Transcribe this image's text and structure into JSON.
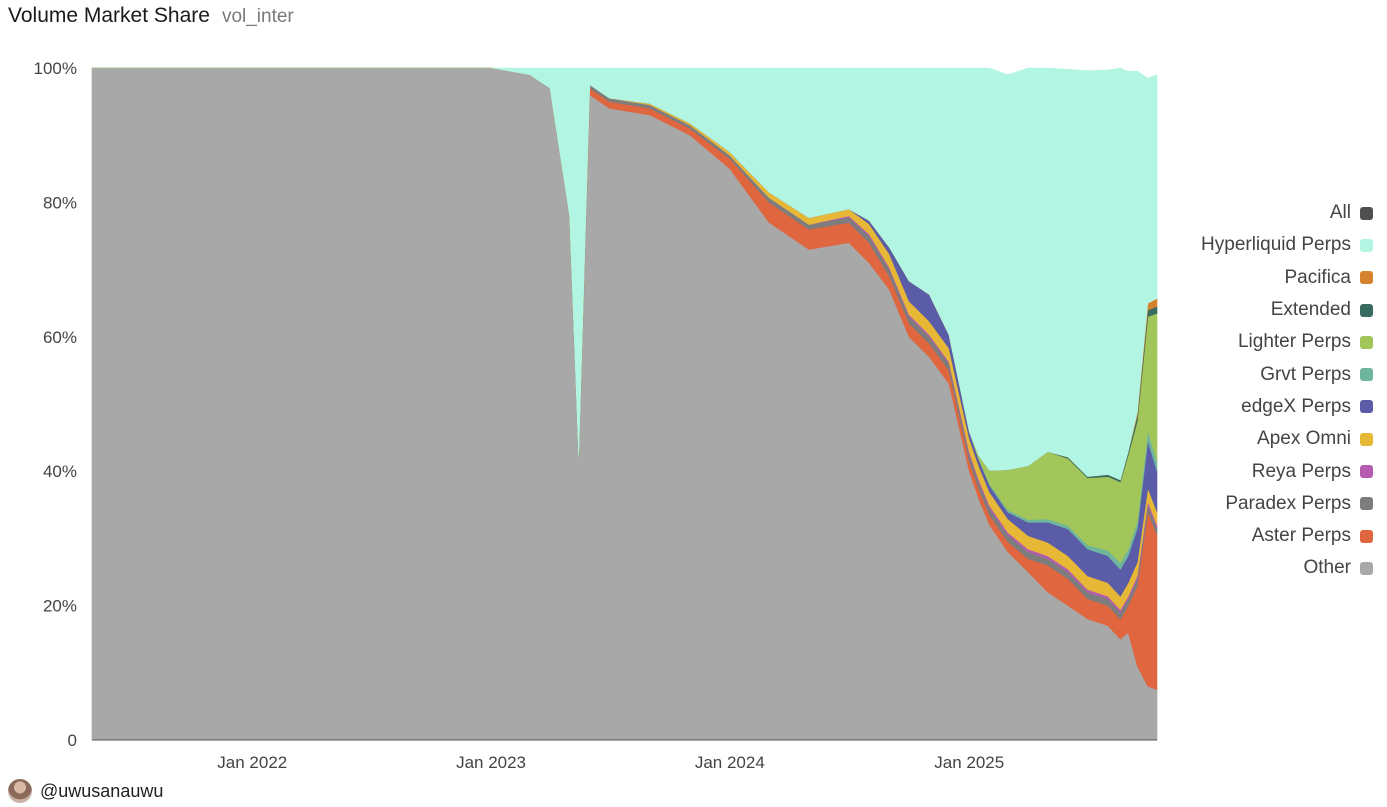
{
  "header": {
    "title": "Volume Market Share",
    "subtitle": "vol_inter"
  },
  "footer": {
    "handle": "@uwusanauwu"
  },
  "colors": {
    "All": "#4f4f4f",
    "Hyperliquid Perps": "#b3f5e3",
    "Pacifica": "#d4832c",
    "Extended": "#386b5f",
    "Lighter Perps": "#a2c65a",
    "Grvt Perps": "#6fb59e",
    "edgeX Perps": "#5a5ca8",
    "Apex Omni": "#e6b836",
    "Reya Perps": "#b55cb0",
    "Paradex Perps": "#7d7d7d",
    "Aster Perps": "#e0663f",
    "Other": "#a8a8a8"
  },
  "chart_data": {
    "type": "area",
    "stacked": true,
    "normalized": true,
    "title": "Volume Market Share",
    "subtitle": "vol_inter",
    "x_ticks": [
      "Jan 2022",
      "Jan 2023",
      "Jan 2024",
      "Jan 2025"
    ],
    "y_ticks": [
      "0",
      "20%",
      "40%",
      "60%",
      "80%",
      "100%"
    ],
    "ylim": [
      0,
      100
    ],
    "xlim": [
      "2021-05-01",
      "2025-10-15"
    ],
    "legend_position": "right",
    "legend": [
      "All",
      "Hyperliquid Perps",
      "Pacifica",
      "Extended",
      "Lighter Perps",
      "Grvt Perps",
      "edgeX Perps",
      "Apex Omni",
      "Reya Perps",
      "Paradex Perps",
      "Aster Perps",
      "Other"
    ],
    "x": [
      "2021-05-01",
      "2022-06-01",
      "2023-01-01",
      "2023-03-01",
      "2023-04-01",
      "2023-05-01",
      "2023-05-15",
      "2023-06-01",
      "2023-07-01",
      "2023-09-01",
      "2023-11-01",
      "2024-01-01",
      "2024-03-01",
      "2024-05-01",
      "2024-07-01",
      "2024-08-01",
      "2024-09-01",
      "2024-10-01",
      "2024-11-01",
      "2024-12-01",
      "2025-01-01",
      "2025-01-15",
      "2025-02-01",
      "2025-03-01",
      "2025-04-01",
      "2025-05-01",
      "2025-06-01",
      "2025-07-01",
      "2025-08-01",
      "2025-08-20",
      "2025-09-01",
      "2025-09-15",
      "2025-10-01",
      "2025-10-15"
    ],
    "series": [
      {
        "name": "Other",
        "values": [
          100,
          100,
          100,
          99,
          97,
          78,
          42,
          96,
          94,
          93,
          90,
          85,
          77,
          73,
          74,
          71,
          67,
          60,
          57,
          53,
          40,
          36,
          32,
          28,
          25,
          22,
          20,
          18,
          17,
          15,
          16,
          11,
          8,
          7.5
        ]
      },
      {
        "name": "Aster Perps",
        "values": [
          0,
          0,
          0,
          0,
          0,
          0,
          0,
          1,
          1,
          1,
          1,
          1.5,
          3,
          3,
          3,
          3,
          2,
          2,
          2,
          2,
          1.5,
          1.5,
          1.5,
          1.5,
          2,
          4,
          4,
          3,
          3,
          3,
          4,
          12,
          26,
          23
        ]
      },
      {
        "name": "Paradex Perps",
        "values": [
          0,
          0,
          0,
          0,
          0,
          0,
          0,
          0.5,
          0.5,
          0.5,
          0.5,
          0.5,
          0.7,
          0.7,
          0.8,
          1,
          1,
          1,
          1,
          1,
          1,
          1,
          1,
          1,
          1,
          1,
          1,
          1,
          1,
          1,
          1,
          1,
          1,
          1
        ]
      },
      {
        "name": "Reya Perps",
        "values": [
          0,
          0,
          0,
          0,
          0,
          0,
          0,
          0,
          0,
          0,
          0,
          0,
          0,
          0,
          0.2,
          0.3,
          0.3,
          0.3,
          0.3,
          0.3,
          0.4,
          0.4,
          0.4,
          0.4,
          0.4,
          0.4,
          0.4,
          0.4,
          0.4,
          0.4,
          0.4,
          0.5,
          0.5,
          0.5
        ]
      },
      {
        "name": "Apex Omni",
        "values": [
          0,
          0,
          0,
          0,
          0,
          0,
          0,
          0,
          0,
          0.2,
          0.3,
          0.5,
          0.8,
          1,
          1,
          1.5,
          2,
          2,
          2,
          2,
          2,
          2,
          2,
          2,
          2,
          2,
          2,
          2,
          2,
          2,
          2,
          2,
          2,
          2
        ]
      },
      {
        "name": "edgeX Perps",
        "values": [
          0,
          0,
          0,
          0,
          0,
          0,
          0,
          0,
          0,
          0,
          0,
          0,
          0,
          0,
          0,
          0.5,
          1,
          3,
          4,
          2,
          1,
          1,
          1,
          1,
          2,
          3,
          4,
          4,
          4,
          4,
          4,
          5,
          7,
          6
        ]
      },
      {
        "name": "Grvt Perps",
        "values": [
          0,
          0,
          0,
          0,
          0,
          0,
          0,
          0,
          0,
          0,
          0,
          0,
          0,
          0,
          0,
          0,
          0,
          0,
          0,
          0,
          0,
          0,
          0.2,
          0.3,
          0.4,
          0.5,
          0.5,
          0.6,
          0.8,
          1,
          1,
          1,
          1.5,
          1.5
        ]
      },
      {
        "name": "Lighter Perps",
        "values": [
          0,
          0,
          0,
          0,
          0,
          0,
          0,
          0,
          0,
          0,
          0,
          0,
          0,
          0,
          0,
          0,
          0,
          0,
          0,
          0,
          0,
          0.5,
          2,
          6,
          8,
          10,
          10,
          10,
          11,
          12,
          14,
          15,
          17,
          22
        ]
      },
      {
        "name": "Extended",
        "values": [
          0,
          0,
          0,
          0,
          0,
          0,
          0,
          0,
          0,
          0,
          0,
          0,
          0,
          0,
          0,
          0,
          0,
          0,
          0,
          0,
          0,
          0,
          0,
          0,
          0,
          0,
          0.2,
          0.2,
          0.3,
          0.3,
          0.5,
          0.8,
          1,
          1
        ]
      },
      {
        "name": "Pacifica",
        "values": [
          0,
          0,
          0,
          0,
          0,
          0,
          0,
          0,
          0,
          0,
          0,
          0,
          0,
          0,
          0,
          0,
          0,
          0,
          0,
          0,
          0,
          0,
          0,
          0,
          0,
          0,
          0,
          0,
          0,
          0,
          0,
          0.5,
          1,
          1.2
        ]
      },
      {
        "name": "Hyperliquid Perps",
        "values": [
          0,
          0,
          0,
          1,
          3,
          22,
          58,
          2.5,
          4.5,
          5.3,
          8.2,
          12.5,
          18.5,
          22.3,
          21,
          22.7,
          26.7,
          31.7,
          33.7,
          39.7,
          54.1,
          57.6,
          59.9,
          58.8,
          59.2,
          57.1,
          57.7,
          60.4,
          60.2,
          61.3,
          56.6,
          50.7,
          33.5,
          33.3
        ]
      }
    ]
  }
}
